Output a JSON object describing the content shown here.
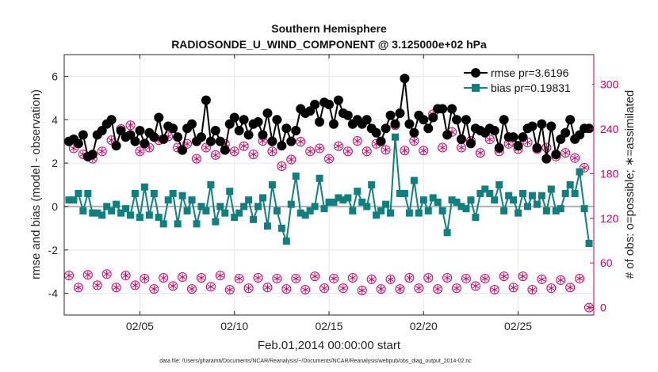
{
  "chart_data": {
    "type": "line",
    "title": "Southern Hemisphere",
    "subtitle": "RADIOSONDE_U_WIND_COMPONENT @ 3.125000e+02 hPa",
    "xlabel": "Feb.01,2014 00:00:00 start",
    "ylabel": "rmse and bias (model - observation)",
    "y2label": "# of obs: o=possible; ∗=assimilated",
    "footnote": "data file: /Users/gharamti/Documents/NCAR/Reanalysis/~/Documents/NCAR/Reanalysis/webpub/obs_diag_output_2014-02.nc",
    "xlim": [
      1.0,
      29.0
    ],
    "ylim": [
      -5,
      7
    ],
    "y2lim": [
      -10,
      340
    ],
    "xtick_values": [
      5,
      10,
      15,
      20,
      25
    ],
    "xtick_labels": [
      "02/05",
      "02/10",
      "02/15",
      "02/20",
      "02/25"
    ],
    "ytick_values": [
      -4,
      -2,
      0,
      2,
      4,
      6
    ],
    "ytick_labels": [
      "-4",
      "-2",
      "0",
      "2",
      "4",
      "6"
    ],
    "y2tick_values": [
      0,
      60,
      120,
      180,
      240,
      300
    ],
    "y2tick_labels": [
      "0",
      "60",
      "120",
      "180",
      "240",
      "300"
    ],
    "legend": {
      "position": "top-right",
      "entries": [
        "rmse pr=3.6196",
        "bias pr=0.19831"
      ]
    },
    "colors": {
      "rmse": "#000000",
      "bias": "#0f7f7f",
      "obs": "#cc0066",
      "zero_line": "#b0b0b0",
      "axis": "#262626"
    },
    "x": [
      1.25,
      1.5,
      1.75,
      2.0,
      2.25,
      2.5,
      2.75,
      3.0,
      3.25,
      3.5,
      3.75,
      4.0,
      4.25,
      4.5,
      4.75,
      5.0,
      5.25,
      5.5,
      5.75,
      6.0,
      6.25,
      6.5,
      6.75,
      7.0,
      7.25,
      7.5,
      7.75,
      8.0,
      8.25,
      8.5,
      8.75,
      9.0,
      9.25,
      9.5,
      9.75,
      10.0,
      10.25,
      10.5,
      10.75,
      11.0,
      11.25,
      11.5,
      11.75,
      12.0,
      12.25,
      12.5,
      12.75,
      13.0,
      13.25,
      13.5,
      13.75,
      14.0,
      14.25,
      14.5,
      14.75,
      15.0,
      15.25,
      15.5,
      15.75,
      16.0,
      16.25,
      16.5,
      16.75,
      17.0,
      17.25,
      17.5,
      17.75,
      18.0,
      18.25,
      18.5,
      18.75,
      19.0,
      19.25,
      19.5,
      19.75,
      20.0,
      20.25,
      20.5,
      20.75,
      21.0,
      21.25,
      21.5,
      21.75,
      22.0,
      22.25,
      22.5,
      22.75,
      23.0,
      23.25,
      23.5,
      23.75,
      24.0,
      24.25,
      24.5,
      24.75,
      25.0,
      25.25,
      25.5,
      25.75,
      26.0,
      26.25,
      26.5,
      26.75,
      27.0,
      27.25,
      27.5,
      27.75,
      28.0,
      28.25,
      28.5,
      28.75
    ],
    "series": [
      {
        "name": "rmse pr=3.6196",
        "axis": "left",
        "marker": "circle",
        "values": [
          3.0,
          3.1,
          2.9,
          3.3,
          2.3,
          2.4,
          3.3,
          3.5,
          3.8,
          4.0,
          2.8,
          3.5,
          3.2,
          3.3,
          3.0,
          3.5,
          2.9,
          3.4,
          3.2,
          4.1,
          3.1,
          3.7,
          3.6,
          3.2,
          2.6,
          3.6,
          3.8,
          3.0,
          3.2,
          4.9,
          3.0,
          3.5,
          3.0,
          2.6,
          3.8,
          4.1,
          3.5,
          4.0,
          3.3,
          3.8,
          3.9,
          3.3,
          4.3,
          3.0,
          4.0,
          2.8,
          3.6,
          3.0,
          3.5,
          4.5,
          4.3,
          4.4,
          4.7,
          3.9,
          4.8,
          4.7,
          3.8,
          4.9,
          4.3,
          4.2,
          3.8,
          4.0,
          3.8,
          4.0,
          3.6,
          3.4,
          3.0,
          3.6,
          4.2,
          3.8,
          4.3,
          5.9,
          3.8,
          3.4,
          4.2,
          4.0,
          3.6,
          4.1,
          4.5,
          4.5,
          3.3,
          4.5,
          4.0,
          3.1,
          4.0,
          2.9,
          3.6,
          3.5,
          3.4,
          3.6,
          3.5,
          2.7,
          4.0,
          3.2,
          3.2,
          2.8,
          3.2,
          3.6,
          3.7,
          2.7,
          3.8,
          2.2,
          3.7,
          2.4,
          3.1,
          3.4,
          4.0,
          3.1,
          3.3,
          3.6,
          3.6
        ],
        "render_note": "values estimated from gridlines"
      },
      {
        "name": "bias pr=0.19831",
        "axis": "left",
        "marker": "square",
        "values": [
          0.3,
          0.3,
          0.6,
          -0.2,
          0.6,
          -0.3,
          -0.3,
          -0.4,
          0.0,
          -0.2,
          0.1,
          -0.3,
          -0.1,
          -0.4,
          0.6,
          -0.5,
          0.9,
          -0.4,
          0.6,
          -0.5,
          -0.8,
          0.3,
          0.6,
          -0.8,
          0.5,
          -0.2,
          0.3,
          -0.8,
          0.0,
          -0.2,
          1.0,
          -0.7,
          0.0,
          -0.3,
          0.7,
          -0.5,
          -0.3,
          0.0,
          0.3,
          -0.6,
          0.0,
          0.4,
          -0.9,
          1.0,
          -0.2,
          -1.0,
          -1.6,
          0.1,
          1.4,
          -0.3,
          -0.4,
          -0.2,
          0.0,
          1.3,
          -0.1,
          0.2,
          0.2,
          0.4,
          0.3,
          0.4,
          -0.2,
          0.7,
          0.2,
          0.0,
          1.0,
          -0.4,
          -0.2,
          0.1,
          -0.3,
          3.2,
          0.6,
          0.6,
          -0.3,
          1.2,
          -0.3,
          0.3,
          -0.2,
          0.4,
          0.2,
          -0.2,
          -1.2,
          0.3,
          0.2,
          0.0,
          -0.1,
          0.3,
          -0.5,
          0.6,
          0.8,
          0.6,
          0.3,
          1.0,
          -0.2,
          0.5,
          0.3,
          -0.3,
          0.6,
          0.0,
          0.5,
          0.1,
          0.5,
          -0.2,
          0.8,
          -0.2,
          -0.1,
          0.6,
          1.0,
          0.6,
          1.6,
          -0.1,
          -1.7
        ],
        "render_note": "values estimated from gridlines"
      },
      {
        "name": "obs possible",
        "axis": "right",
        "marker": "open-circle",
        "values": [
          43,
          214,
          27,
          206,
          44,
          200,
          30,
          210,
          45,
          225,
          27,
          240,
          43,
          245,
          30,
          210,
          39,
          215,
          25,
          225,
          40,
          230,
          29,
          215,
          41,
          220,
          25,
          200,
          40,
          215,
          28,
          205,
          43,
          220,
          24,
          210,
          39,
          217,
          26,
          206,
          40,
          224,
          27,
          210,
          39,
          190,
          25,
          199,
          39,
          223,
          24,
          210,
          42,
          214,
          26,
          200,
          39,
          217,
          26,
          210,
          40,
          224,
          23,
          210,
          38,
          220,
          25,
          212,
          38,
          245,
          25,
          211,
          40,
          224,
          26,
          211,
          40,
          260,
          25,
          215,
          40,
          236,
          26,
          215,
          39,
          224,
          29,
          208,
          39,
          226,
          24,
          210,
          42,
          220,
          27,
          213,
          42,
          222,
          24,
          213,
          38,
          215,
          26,
          203,
          37,
          208,
          27,
          201,
          39,
          188,
          0
        ],
        "render_note": "values estimated from gridlines"
      },
      {
        "name": "obs assimilated",
        "axis": "right",
        "marker": "asterisk",
        "values": [
          43,
          214,
          27,
          206,
          44,
          200,
          30,
          210,
          45,
          225,
          27,
          240,
          43,
          245,
          30,
          210,
          39,
          215,
          25,
          225,
          40,
          230,
          29,
          215,
          41,
          220,
          25,
          200,
          40,
          215,
          28,
          205,
          43,
          220,
          24,
          210,
          39,
          217,
          26,
          206,
          40,
          224,
          27,
          210,
          39,
          190,
          25,
          199,
          39,
          223,
          24,
          210,
          42,
          214,
          26,
          200,
          39,
          217,
          26,
          210,
          40,
          224,
          23,
          210,
          38,
          220,
          25,
          212,
          38,
          245,
          25,
          211,
          40,
          224,
          26,
          211,
          40,
          260,
          25,
          215,
          40,
          236,
          26,
          215,
          39,
          224,
          29,
          208,
          39,
          226,
          24,
          210,
          42,
          220,
          27,
          213,
          42,
          222,
          24,
          213,
          38,
          215,
          26,
          203,
          37,
          208,
          27,
          201,
          39,
          188,
          0
        ],
        "render_note": "values estimated from gridlines"
      }
    ]
  }
}
